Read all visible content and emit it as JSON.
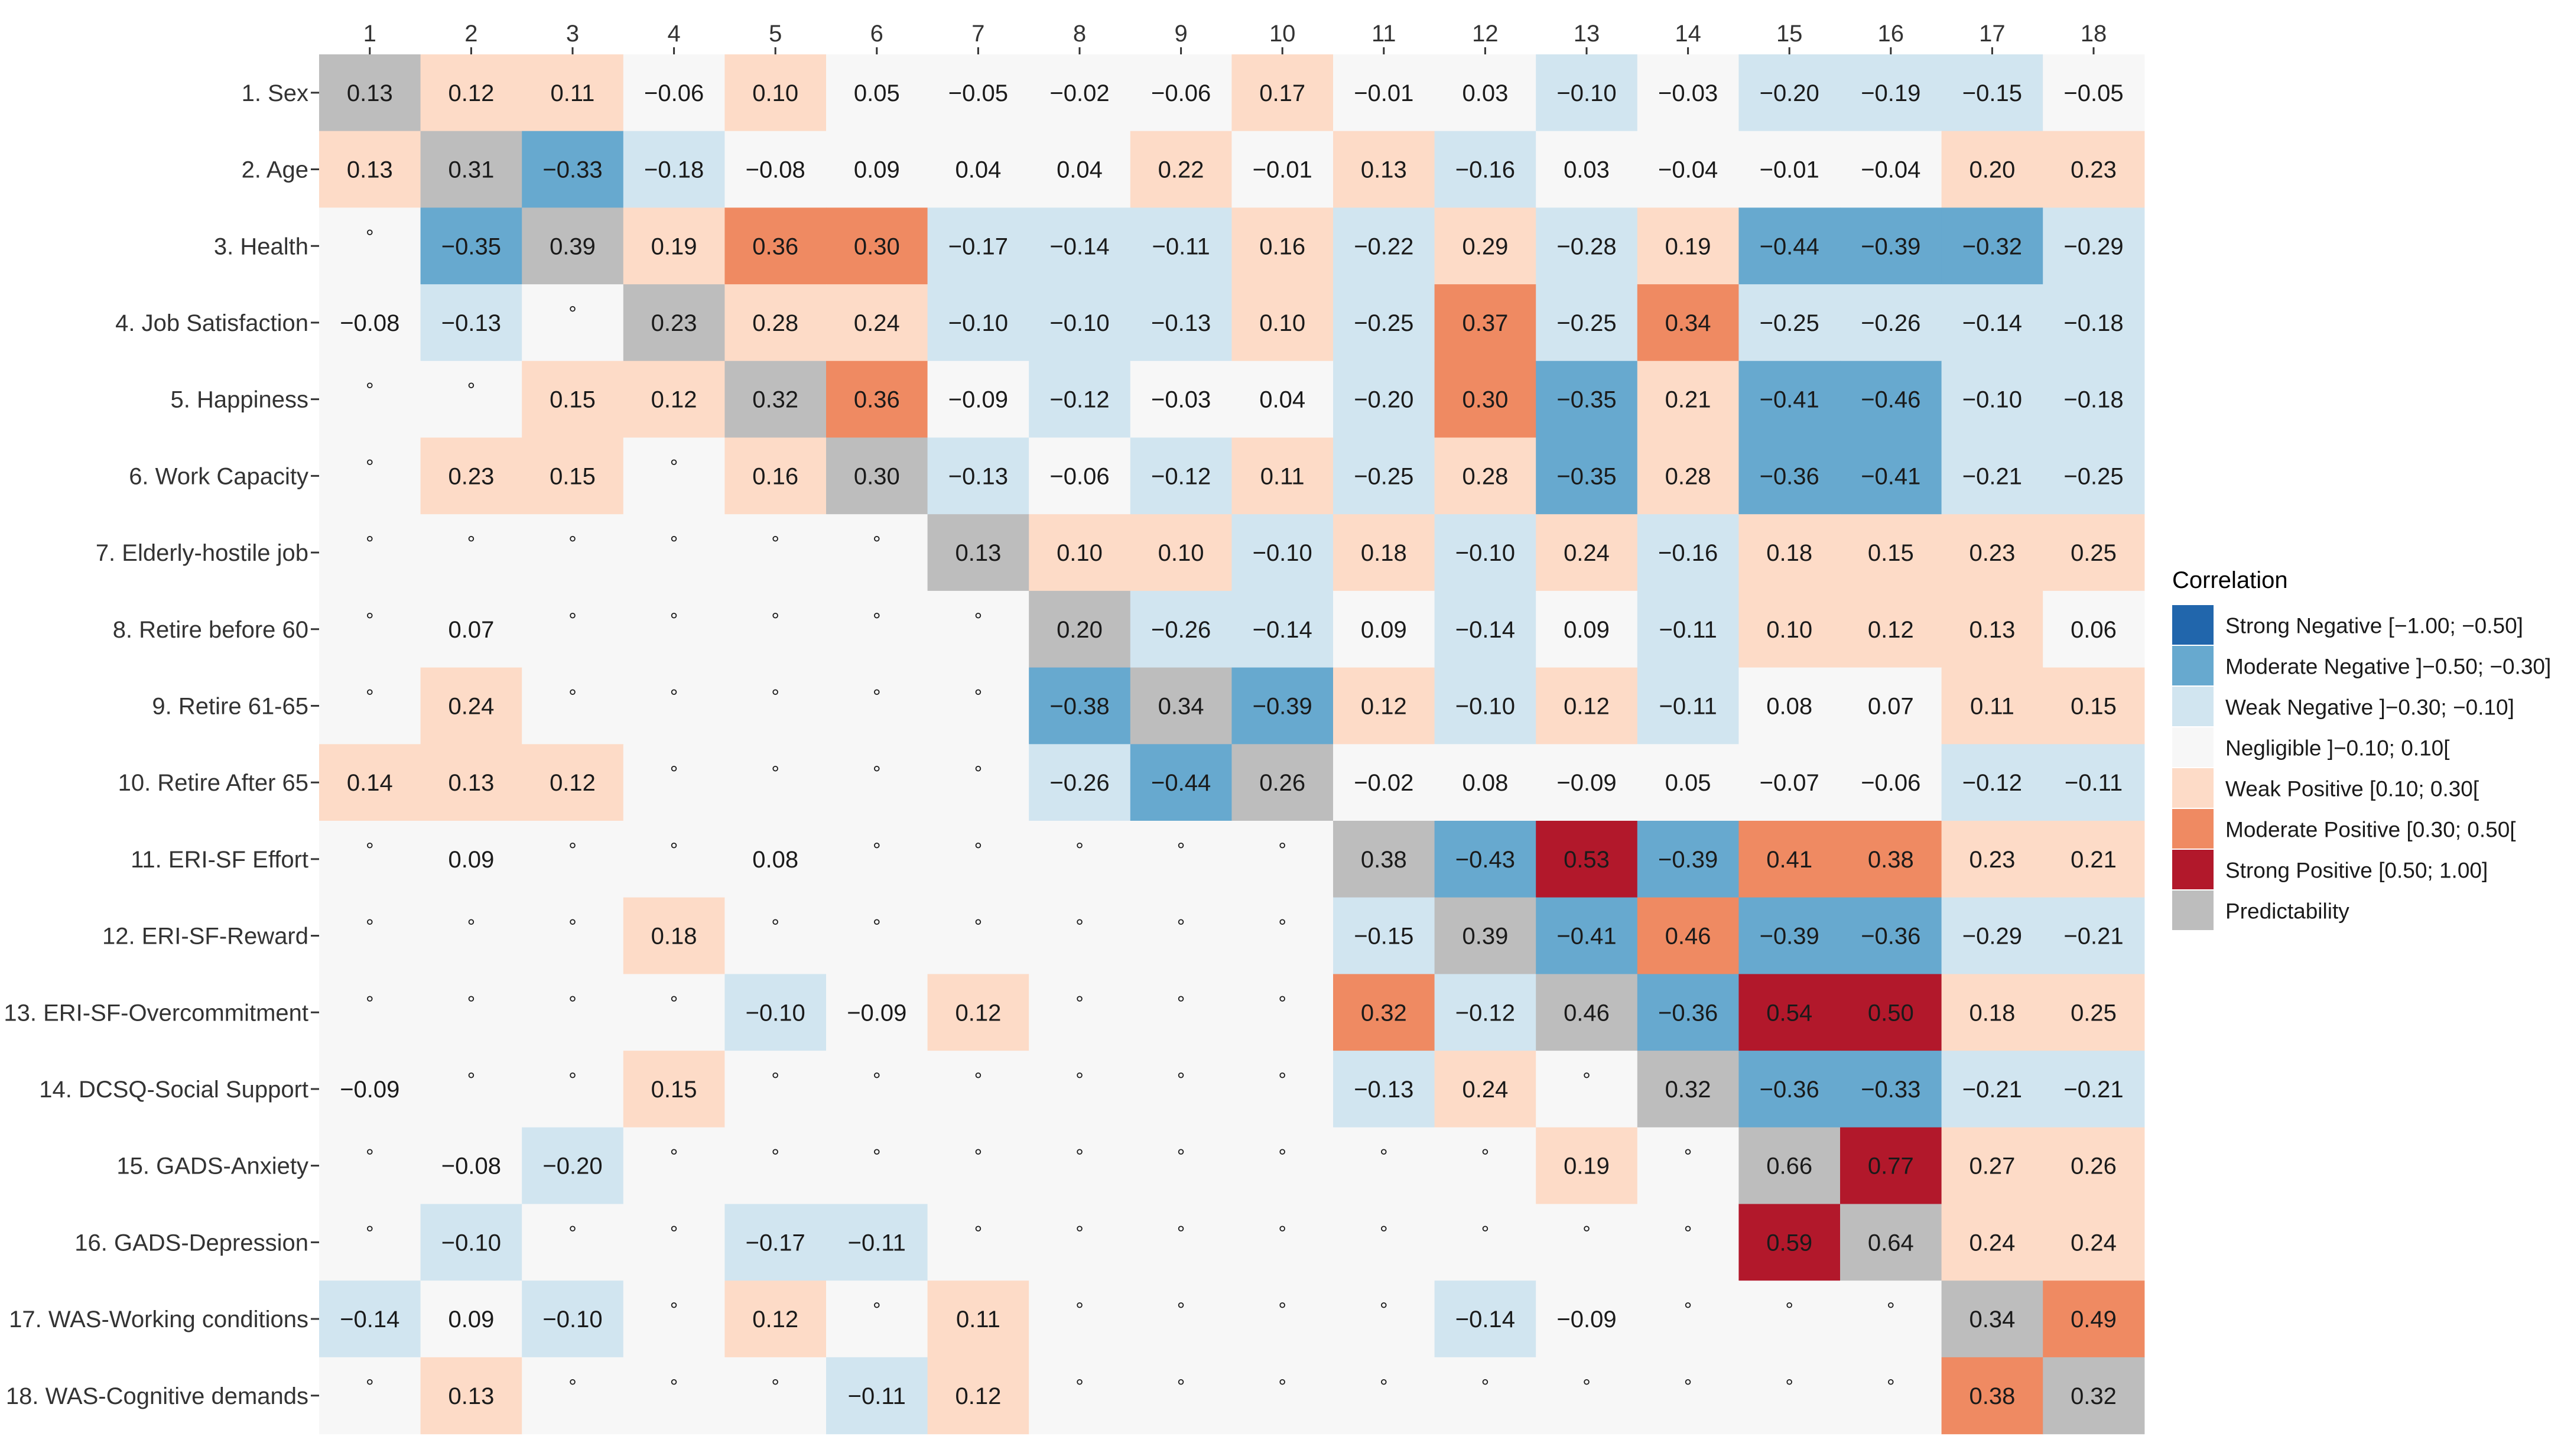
{
  "chart_data": {
    "type": "heatmap",
    "columns": [
      "1",
      "2",
      "3",
      "4",
      "5",
      "6",
      "7",
      "8",
      "9",
      "10",
      "11",
      "12",
      "13",
      "14",
      "15",
      "16",
      "17",
      "18"
    ],
    "rows": [
      "1. Sex",
      "2. Age",
      "3. Health",
      "4. Job Satisfaction",
      "5. Happiness",
      "6. Work Capacity",
      "7. Elderly-hostile job",
      "8. Retire before 60",
      "9. Retire 61-65",
      "10. Retire After 65",
      "11. ERI-SF Effort",
      "12. ERI-SF-Reward",
      "13. ERI-SF-Overcommitment",
      "14. DCSQ-Social Support",
      "15. GADS-Anxiety",
      "16. GADS-Depression",
      "17. WAS-Working conditions",
      "18. WAS-Cognitive demands"
    ],
    "values": [
      [
        "0.13",
        "0.12",
        "0.11",
        "−0.06",
        "0.10",
        "0.05",
        "−0.05",
        "−0.02",
        "−0.06",
        "0.17",
        "−0.01",
        "0.03",
        "−0.10",
        "−0.03",
        "−0.20",
        "−0.19",
        "−0.15",
        "−0.05"
      ],
      [
        "0.13",
        "0.31",
        "−0.33",
        "−0.18",
        "−0.08",
        "0.09",
        "0.04",
        "0.04",
        "0.22",
        "−0.01",
        "0.13",
        "−0.16",
        "0.03",
        "−0.04",
        "−0.01",
        "−0.04",
        "0.20",
        "0.23"
      ],
      [
        "°",
        "−0.35",
        "0.39",
        "0.19",
        "0.36",
        "0.30",
        "−0.17",
        "−0.14",
        "−0.11",
        "0.16",
        "−0.22",
        "0.29",
        "−0.28",
        "0.19",
        "−0.44",
        "−0.39",
        "−0.32",
        "−0.29"
      ],
      [
        "−0.08",
        "−0.13",
        "°",
        "0.23",
        "0.28",
        "0.24",
        "−0.10",
        "−0.10",
        "−0.13",
        "0.10",
        "−0.25",
        "0.37",
        "−0.25",
        "0.34",
        "−0.25",
        "−0.26",
        "−0.14",
        "−0.18"
      ],
      [
        "°",
        "°",
        "0.15",
        "0.12",
        "0.32",
        "0.36",
        "−0.09",
        "−0.12",
        "−0.03",
        "0.04",
        "−0.20",
        "0.30",
        "−0.35",
        "0.21",
        "−0.41",
        "−0.46",
        "−0.10",
        "−0.18"
      ],
      [
        "°",
        "0.23",
        "0.15",
        "°",
        "0.16",
        "0.30",
        "−0.13",
        "−0.06",
        "−0.12",
        "0.11",
        "−0.25",
        "0.28",
        "−0.35",
        "0.28",
        "−0.36",
        "−0.41",
        "−0.21",
        "−0.25"
      ],
      [
        "°",
        "°",
        "°",
        "°",
        "°",
        "°",
        "0.13",
        "0.10",
        "0.10",
        "−0.10",
        "0.18",
        "−0.10",
        "0.24",
        "−0.16",
        "0.18",
        "0.15",
        "0.23",
        "0.25"
      ],
      [
        "°",
        "0.07",
        "°",
        "°",
        "°",
        "°",
        "°",
        "0.20",
        "−0.26",
        "−0.14",
        "0.09",
        "−0.14",
        "0.09",
        "−0.11",
        "0.10",
        "0.12",
        "0.13",
        "0.06"
      ],
      [
        "°",
        "0.24",
        "°",
        "°",
        "°",
        "°",
        "°",
        "−0.38",
        "0.34",
        "−0.39",
        "0.12",
        "−0.10",
        "0.12",
        "−0.11",
        "0.08",
        "0.07",
        "0.11",
        "0.15"
      ],
      [
        "0.14",
        "0.13",
        "0.12",
        "°",
        "°",
        "°",
        "°",
        "−0.26",
        "−0.44",
        "0.26",
        "−0.02",
        "0.08",
        "−0.09",
        "0.05",
        "−0.07",
        "−0.06",
        "−0.12",
        "−0.11"
      ],
      [
        "°",
        "0.09",
        "°",
        "°",
        "0.08",
        "°",
        "°",
        "°",
        "°",
        "°",
        "0.38",
        "−0.43",
        "0.53",
        "−0.39",
        "0.41",
        "0.38",
        "0.23",
        "0.21"
      ],
      [
        "°",
        "°",
        "°",
        "0.18",
        "°",
        "°",
        "°",
        "°",
        "°",
        "°",
        "−0.15",
        "0.39",
        "−0.41",
        "0.46",
        "−0.39",
        "−0.36",
        "−0.29",
        "−0.21"
      ],
      [
        "°",
        "°",
        "°",
        "°",
        "−0.10",
        "−0.09",
        "0.12",
        "°",
        "°",
        "°",
        "0.32",
        "−0.12",
        "0.46",
        "−0.36",
        "0.54",
        "0.50",
        "0.18",
        "0.25"
      ],
      [
        "−0.09",
        "°",
        "°",
        "0.15",
        "°",
        "°",
        "°",
        "°",
        "°",
        "°",
        "−0.13",
        "0.24",
        "°",
        "0.32",
        "−0.36",
        "−0.33",
        "−0.21",
        "−0.21"
      ],
      [
        "°",
        "−0.08",
        "−0.20",
        "°",
        "°",
        "°",
        "°",
        "°",
        "°",
        "°",
        "°",
        "°",
        "0.19",
        "°",
        "0.66",
        "0.77",
        "0.27",
        "0.26"
      ],
      [
        "°",
        "−0.10",
        "°",
        "°",
        "−0.17",
        "−0.11",
        "°",
        "°",
        "°",
        "°",
        "°",
        "°",
        "°",
        "°",
        "0.59",
        "0.64",
        "0.24",
        "0.24"
      ],
      [
        "−0.14",
        "0.09",
        "−0.10",
        "°",
        "0.12",
        "°",
        "0.11",
        "°",
        "°",
        "°",
        "°",
        "−0.14",
        "−0.09",
        "°",
        "°",
        "°",
        "0.34",
        "0.49"
      ],
      [
        "°",
        "0.13",
        "°",
        "°",
        "°",
        "−0.11",
        "0.12",
        "°",
        "°",
        "°",
        "°",
        "°",
        "°",
        "°",
        "°",
        "°",
        "0.38",
        "0.32"
      ]
    ],
    "legend": {
      "title": "Correlation",
      "position": "right",
      "items": [
        {
          "label": "Strong Negative [−1.00; −0.50]",
          "color": "#2166ac"
        },
        {
          "label": "Moderate Negative ]−0.50; −0.30]",
          "color": "#67a9cf"
        },
        {
          "label": "Weak Negative ]−0.30; −0.10]",
          "color": "#d1e5f0"
        },
        {
          "label": "Negligible ]−0.10; 0.10[",
          "color": "#f7f7f7"
        },
        {
          "label": "Weak Positive [0.10; 0.30[",
          "color": "#fddbc7"
        },
        {
          "label": "Moderate Positive [0.30; 0.50[",
          "color": "#ef8a62"
        },
        {
          "label": "Strong Positive [0.50; 1.00]",
          "color": "#b2182b"
        },
        {
          "label": "Predictability",
          "color": "#bdbdbd"
        }
      ]
    },
    "nonsignificant_symbol": "°",
    "diagonal": "Predictability"
  }
}
